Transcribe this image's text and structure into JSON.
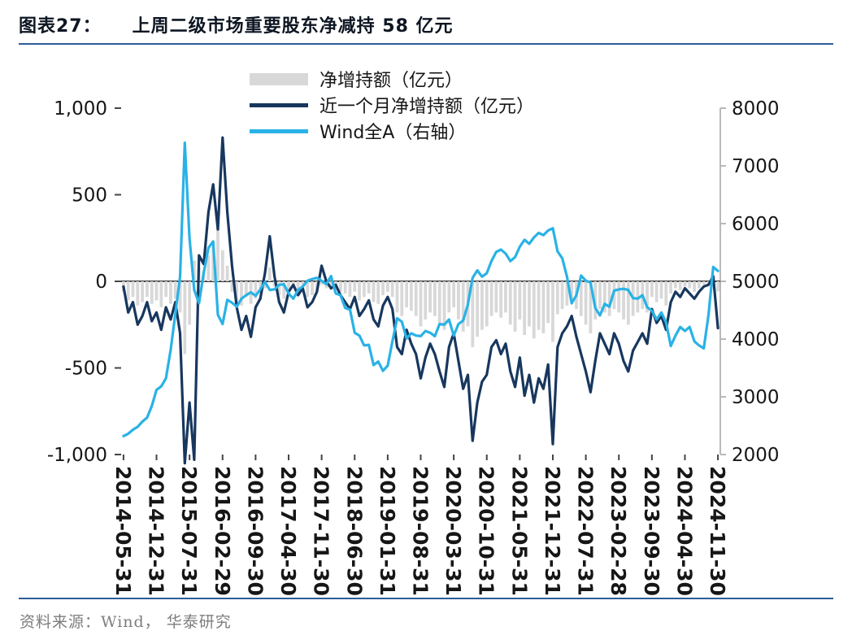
{
  "header": {
    "figure_label": "图表27：",
    "title": "上周二级市场重要股东净减持 58 亿元"
  },
  "footer": {
    "source": "资料来源：Wind， 华泰研究"
  },
  "colors": {
    "accent_rule": "#2e5b97",
    "bar": "#d8d8d8",
    "dark_line": "#17375e",
    "light_line": "#29b2e6",
    "zero_axis": "#3c3c3c",
    "right_axis_line": "#b9b9b9",
    "axis_text": "#161616"
  },
  "chart_data": {
    "type": "combo (bar + 2 lines)",
    "title": "上周二级市场重要股东净减持 58 亿元",
    "legend": [
      {
        "label": "净增持额（亿元）",
        "type": "bar",
        "axis": "left",
        "color": "#d8d8d8"
      },
      {
        "label": "近一个月净增持额（亿元）",
        "type": "line",
        "axis": "left",
        "color": "#17375e"
      },
      {
        "label": "Wind全A（右轴）",
        "type": "line",
        "axis": "right",
        "color": "#29b2e6"
      }
    ],
    "left_axis": {
      "min": -1000,
      "max": 1000,
      "ticks": [
        {
          "value": 1000,
          "label": "1,000"
        },
        {
          "value": 500,
          "label": "500"
        },
        {
          "value": 0,
          "label": "0"
        },
        {
          "value": -500,
          "label": "-500"
        },
        {
          "value": -1000,
          "label": "-1,000"
        }
      ]
    },
    "right_axis": {
      "min": 2000,
      "max": 8000,
      "ticks": [
        {
          "value": 8000,
          "label": "8000"
        },
        {
          "value": 7000,
          "label": "7000"
        },
        {
          "value": 6000,
          "label": "6000"
        },
        {
          "value": 5000,
          "label": "5000"
        },
        {
          "value": 4000,
          "label": "4000"
        },
        {
          "value": 3000,
          "label": "3000"
        },
        {
          "value": 2000,
          "label": "2000"
        }
      ]
    },
    "x_ticks": [
      {
        "index": 0,
        "label": "2014-05-31"
      },
      {
        "index": 7,
        "label": "2014-12-31"
      },
      {
        "index": 14,
        "label": "2015-07-31"
      },
      {
        "index": 21,
        "label": "2016-02-29"
      },
      {
        "index": 28,
        "label": "2016-09-30"
      },
      {
        "index": 35,
        "label": "2017-04-30"
      },
      {
        "index": 42,
        "label": "2017-11-30"
      },
      {
        "index": 49,
        "label": "2018-06-30"
      },
      {
        "index": 56,
        "label": "2019-01-31"
      },
      {
        "index": 63,
        "label": "2019-08-31"
      },
      {
        "index": 70,
        "label": "2020-03-31"
      },
      {
        "index": 77,
        "label": "2020-10-31"
      },
      {
        "index": 84,
        "label": "2021-05-31"
      },
      {
        "index": 91,
        "label": "2021-12-31"
      },
      {
        "index": 98,
        "label": "2022-07-31"
      },
      {
        "index": 105,
        "label": "2023-02-28"
      },
      {
        "index": 112,
        "label": "2023-09-30"
      },
      {
        "index": 119,
        "label": "2024-04-30"
      },
      {
        "index": 126,
        "label": "2024-11-30"
      }
    ],
    "categories": [
      "2014-05",
      "2014-06",
      "2014-07",
      "2014-08",
      "2014-09",
      "2014-10",
      "2014-11",
      "2014-12",
      "2015-01",
      "2015-02",
      "2015-03",
      "2015-04",
      "2015-05",
      "2015-06",
      "2015-07",
      "2015-08",
      "2015-09",
      "2015-10",
      "2015-11",
      "2015-12",
      "2016-01",
      "2016-02",
      "2016-03",
      "2016-04",
      "2016-05",
      "2016-06",
      "2016-07",
      "2016-08",
      "2016-09",
      "2016-10",
      "2016-11",
      "2016-12",
      "2017-01",
      "2017-02",
      "2017-03",
      "2017-04",
      "2017-05",
      "2017-06",
      "2017-07",
      "2017-08",
      "2017-09",
      "2017-10",
      "2017-11",
      "2017-12",
      "2018-01",
      "2018-02",
      "2018-03",
      "2018-04",
      "2018-05",
      "2018-06",
      "2018-07",
      "2018-08",
      "2018-09",
      "2018-10",
      "2018-11",
      "2018-12",
      "2019-01",
      "2019-02",
      "2019-03",
      "2019-04",
      "2019-05",
      "2019-06",
      "2019-07",
      "2019-08",
      "2019-09",
      "2019-10",
      "2019-11",
      "2019-12",
      "2020-01",
      "2020-02",
      "2020-03",
      "2020-04",
      "2020-05",
      "2020-06",
      "2020-07",
      "2020-08",
      "2020-09",
      "2020-10",
      "2020-11",
      "2020-12",
      "2021-01",
      "2021-02",
      "2021-03",
      "2021-04",
      "2021-05",
      "2021-06",
      "2021-07",
      "2021-08",
      "2021-09",
      "2021-10",
      "2021-11",
      "2021-12",
      "2022-01",
      "2022-02",
      "2022-03",
      "2022-04",
      "2022-05",
      "2022-06",
      "2022-07",
      "2022-08",
      "2022-09",
      "2022-10",
      "2022-11",
      "2022-12",
      "2023-01",
      "2023-02",
      "2023-03",
      "2023-04",
      "2023-05",
      "2023-06",
      "2023-07",
      "2023-08",
      "2023-09",
      "2023-10",
      "2023-11",
      "2023-12",
      "2024-01",
      "2024-02",
      "2024-03",
      "2024-04",
      "2024-05",
      "2024-06",
      "2024-07",
      "2024-08",
      "2024-09",
      "2024-10",
      "2024-11"
    ],
    "series": [
      {
        "name": "净增持额（亿元）",
        "type": "bar",
        "axis": "left",
        "values": [
          -60,
          -110,
          -90,
          -140,
          -120,
          -90,
          -130,
          -110,
          -150,
          -90,
          -130,
          -100,
          -180,
          -420,
          -250,
          120,
          80,
          60,
          150,
          200,
          310,
          180,
          90,
          -60,
          -120,
          -140,
          -90,
          -130,
          -100,
          -70,
          -40,
          80,
          -30,
          -80,
          -100,
          -50,
          -40,
          -70,
          -60,
          -90,
          -80,
          -50,
          -20,
          -40,
          -50,
          -40,
          -60,
          -70,
          -90,
          -60,
          -110,
          -90,
          -70,
          -120,
          -130,
          -80,
          -60,
          -90,
          -180,
          -200,
          -150,
          -170,
          -200,
          -260,
          -220,
          -180,
          -200,
          -240,
          -280,
          -180,
          -150,
          -220,
          -290,
          -260,
          -380,
          -320,
          -280,
          -260,
          -200,
          -180,
          -210,
          -180,
          -250,
          -290,
          -220,
          -310,
          -260,
          -330,
          -280,
          -300,
          -240,
          -350,
          -190,
          -160,
          -140,
          -110,
          -160,
          -200,
          -250,
          -300,
          -220,
          -160,
          -180,
          -200,
          -160,
          -180,
          -220,
          -250,
          -200,
          -180,
          -160,
          -180,
          -90,
          -120,
          -100,
          -140,
          -70,
          -40,
          -50,
          -30,
          -40,
          -60,
          -40,
          -20,
          -15,
          20,
          -58
        ]
      },
      {
        "name": "近一个月净增持额（亿元）",
        "type": "line",
        "axis": "left",
        "values": [
          -30,
          -180,
          -120,
          -250,
          -200,
          -120,
          -230,
          -180,
          -280,
          -150,
          -220,
          -120,
          -300,
          -1050,
          -700,
          -1030,
          150,
          100,
          400,
          560,
          300,
          830,
          400,
          90,
          -150,
          -280,
          -200,
          -320,
          -150,
          -100,
          50,
          260,
          30,
          -120,
          -180,
          -60,
          -20,
          -80,
          -40,
          -150,
          -120,
          -60,
          90,
          0,
          -40,
          -20,
          -80,
          -120,
          -160,
          -90,
          -200,
          -160,
          -110,
          -220,
          -260,
          -140,
          -90,
          -160,
          -380,
          -420,
          -280,
          -360,
          -420,
          -560,
          -440,
          -360,
          -420,
          -520,
          -610,
          -380,
          -300,
          -460,
          -620,
          -540,
          -920,
          -700,
          -580,
          -540,
          -380,
          -340,
          -420,
          -360,
          -520,
          -610,
          -440,
          -660,
          -540,
          -700,
          -560,
          -620,
          -480,
          -940,
          -380,
          -300,
          -260,
          -200,
          -320,
          -420,
          -520,
          -640,
          -460,
          -300,
          -360,
          -420,
          -300,
          -360,
          -460,
          -520,
          -400,
          -350,
          -300,
          -360,
          -160,
          -240,
          -200,
          -280,
          -120,
          -60,
          -90,
          -40,
          -70,
          -100,
          -60,
          -30,
          -20,
          30,
          -270
        ]
      },
      {
        "name": "Wind全A（右轴）",
        "type": "line",
        "axis": "right",
        "values": [
          2320,
          2360,
          2430,
          2480,
          2570,
          2640,
          2840,
          3120,
          3180,
          3320,
          3810,
          4440,
          5080,
          7400,
          5750,
          4850,
          4620,
          5150,
          5580,
          5690,
          4420,
          4260,
          4680,
          4630,
          4560,
          4700,
          4760,
          4810,
          4750,
          4860,
          4990,
          4850,
          4860,
          4940,
          4950,
          4790,
          4700,
          4850,
          4910,
          5010,
          5040,
          5060,
          5010,
          4950,
          5090,
          4790,
          4760,
          4540,
          4510,
          4110,
          4060,
          3890,
          3900,
          3550,
          3610,
          3450,
          3540,
          3960,
          4360,
          4300,
          4010,
          4100,
          4060,
          4050,
          4140,
          4110,
          4050,
          4260,
          4250,
          4340,
          4060,
          4260,
          4320,
          4600,
          5060,
          5190,
          5080,
          5140,
          5350,
          5510,
          5550,
          5480,
          5350,
          5420,
          5600,
          5720,
          5650,
          5760,
          5840,
          5800,
          5880,
          5920,
          5520,
          5400,
          5080,
          4620,
          4760,
          5100,
          5010,
          4980,
          4540,
          4410,
          4610,
          4560,
          4840,
          4860,
          4870,
          4850,
          4710,
          4700,
          4760,
          4550,
          4490,
          4340,
          4460,
          4290,
          3880,
          4060,
          4210,
          4140,
          4210,
          3960,
          3890,
          3840,
          4420,
          5250,
          5180
        ]
      }
    ]
  }
}
